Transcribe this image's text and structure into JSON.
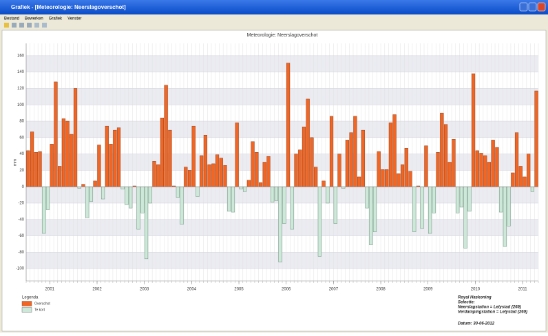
{
  "window": {
    "title": "Grafiek - [Meteorologie: Neerslagoverschot]",
    "menu": [
      "Bestand",
      "Bewerken",
      "Grafiek",
      "Venster"
    ]
  },
  "chart_data": {
    "type": "bar",
    "title": "Meteorologie: Neerslagoverschot",
    "y_label": "mm",
    "xlim": [
      0,
      130
    ],
    "xticks": [
      {
        "value": 6,
        "label": "2001"
      },
      {
        "value": 18,
        "label": "2002"
      },
      {
        "value": 30,
        "label": "2003"
      },
      {
        "value": 42,
        "label": "2004"
      },
      {
        "value": 54,
        "label": "2005"
      },
      {
        "value": 66,
        "label": "2006"
      },
      {
        "value": 78,
        "label": "2007"
      },
      {
        "value": 90,
        "label": "2008"
      },
      {
        "value": 102,
        "label": "2009"
      },
      {
        "value": 114,
        "label": "2010"
      },
      {
        "value": 126,
        "label": "2011"
      }
    ],
    "ylim": [
      -115,
      175
    ],
    "yticks": [
      -100,
      -80,
      -60,
      -40,
      -20,
      0,
      20,
      40,
      60,
      80,
      100,
      120,
      140,
      160
    ],
    "grid": true,
    "legend_title": "Legenda",
    "series": [
      {
        "name": "Overschot",
        "color": "#f26522",
        "values": [
          44,
          67,
          42,
          43,
          null,
          null,
          52,
          128,
          25,
          83,
          80,
          64,
          120,
          null,
          3,
          null,
          null,
          7,
          51,
          null,
          74,
          52,
          69,
          72,
          null,
          null,
          null,
          1,
          null,
          null,
          null,
          null,
          31,
          27,
          84,
          124,
          69,
          1,
          null,
          null,
          24,
          20,
          74,
          null,
          38,
          63,
          27,
          28,
          39,
          35,
          26,
          null,
          null,
          78,
          null,
          null,
          8,
          55,
          42,
          5,
          30,
          37,
          null,
          null,
          null,
          null,
          151,
          null,
          40,
          45,
          73,
          107,
          60,
          24,
          null,
          7,
          null,
          86,
          null,
          40,
          null,
          57,
          66,
          86,
          12,
          69,
          null,
          null,
          null,
          43,
          21,
          21,
          78,
          88,
          16,
          27,
          47,
          19,
          null,
          1,
          null,
          50,
          null,
          null,
          42,
          90,
          76,
          30,
          58,
          null,
          null,
          null,
          null,
          138,
          44,
          41,
          38,
          30,
          57,
          48,
          null,
          null,
          null,
          17,
          66,
          25,
          12,
          40,
          null,
          117
        ]
      },
      {
        "name": "Te kort",
        "color": "#cde8d8",
        "values": [
          null,
          null,
          null,
          null,
          -57,
          -28,
          null,
          null,
          null,
          null,
          null,
          null,
          null,
          -2,
          null,
          -38,
          -18,
          null,
          null,
          -15,
          null,
          null,
          null,
          null,
          -3,
          -22,
          -26,
          null,
          -52,
          -32,
          -88,
          -20,
          null,
          null,
          null,
          null,
          null,
          null,
          -13,
          -46,
          null,
          null,
          null,
          -12,
          null,
          null,
          null,
          null,
          null,
          null,
          null,
          -30,
          -31,
          null,
          -3,
          -6,
          null,
          null,
          null,
          null,
          null,
          null,
          -19,
          -17,
          -92,
          -45,
          null,
          -52,
          null,
          null,
          null,
          null,
          null,
          null,
          -85,
          null,
          -20,
          null,
          -45,
          null,
          -2,
          null,
          null,
          null,
          null,
          null,
          -26,
          -71,
          -55,
          null,
          null,
          null,
          null,
          null,
          null,
          null,
          null,
          null,
          -55,
          null,
          -51,
          null,
          -57,
          -32,
          null,
          null,
          null,
          null,
          null,
          -32,
          -25,
          -75,
          -30,
          null,
          null,
          null,
          null,
          null,
          null,
          null,
          -31,
          -73,
          -48,
          null,
          null,
          null,
          null,
          null,
          -6,
          null
        ]
      }
    ],
    "info": [
      "Royal Haskoning",
      "Selectie:",
      "Neerslagstation = Lelystad (269)",
      "Verdampingstation = Lelystad (269)",
      "Datum: 30-06-2012"
    ]
  }
}
